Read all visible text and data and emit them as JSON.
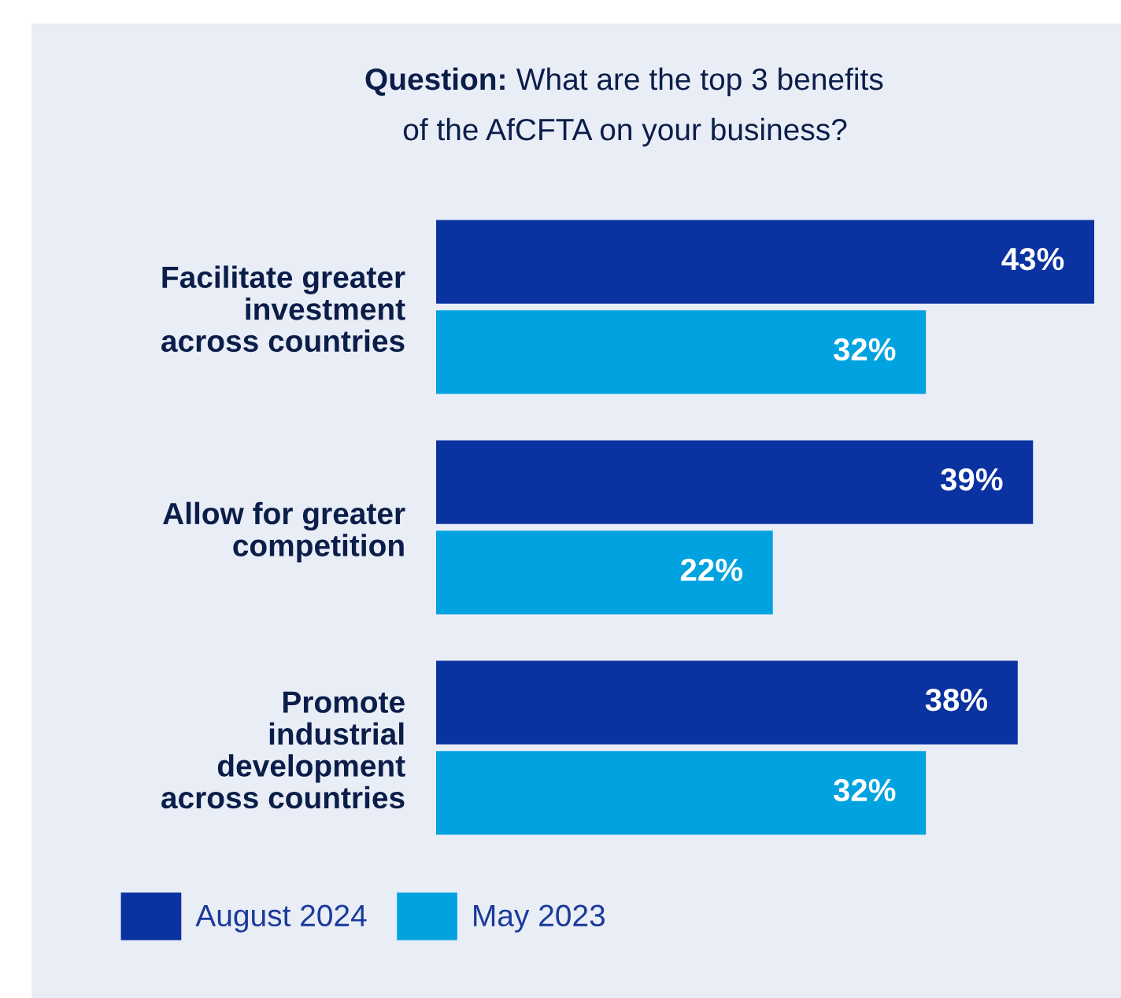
{
  "chart_data": {
    "type": "bar",
    "orientation": "horizontal",
    "title": "Question: What are the top 3 benefits\nof the AfCFTA on your business?",
    "categories": [
      "Facilitate greater\ninvestment\nacross countries",
      "Allow for greater\ncompetition",
      "Promote\nindustrial\ndevelopment\nacross countries"
    ],
    "series": [
      {
        "name": "August 2024",
        "color": "#0a32a0",
        "values": [
          43,
          39,
          38
        ],
        "value_labels": [
          "43%",
          "39%",
          "38%"
        ]
      },
      {
        "name": "May 2023",
        "color": "#00a3e0",
        "values": [
          32,
          22,
          32
        ],
        "value_labels": [
          "32%",
          "22%",
          "32%"
        ]
      }
    ],
    "legend": "bottom left",
    "grid": false
  }
}
